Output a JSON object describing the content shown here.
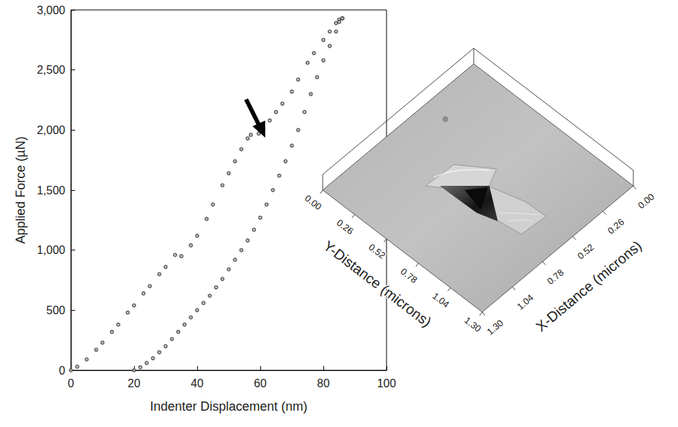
{
  "chart_data": {
    "type": "scatter",
    "xlabel": "Indenter Displacement (nm)",
    "ylabel": "Applied Force (µN)",
    "xlim": [
      0,
      100
    ],
    "xticks": [
      0,
      20,
      40,
      60,
      80,
      100
    ],
    "ylim": [
      0,
      3000
    ],
    "yticks": [
      0,
      500,
      1000,
      1500,
      2000,
      2500,
      3000
    ],
    "grid": false,
    "marker": "circle-open",
    "series": [
      {
        "color": "#4a4a4a",
        "x": [
          0,
          2,
          5,
          8,
          10,
          13,
          15,
          18,
          20,
          23,
          25,
          28,
          30,
          33,
          35,
          38,
          40,
          43,
          45,
          48,
          50,
          52,
          54,
          56,
          57,
          59.5,
          61,
          63,
          65,
          67,
          70,
          72,
          75,
          77,
          80,
          82,
          84,
          85,
          86
        ],
        "values": [
          0,
          30,
          90,
          170,
          230,
          320,
          380,
          480,
          540,
          640,
          700,
          800,
          860,
          960,
          950,
          1040,
          1120,
          1260,
          1380,
          1540,
          1640,
          1740,
          1840,
          1930,
          1960,
          1970,
          2010,
          2080,
          2150,
          2220,
          2320,
          2420,
          2560,
          2640,
          2750,
          2820,
          2890,
          2920,
          2930
        ]
      },
      {
        "color": "#4a4a4a",
        "x": [
          86,
          85,
          84,
          82,
          80,
          78,
          76,
          74,
          72,
          70,
          68,
          66,
          64,
          62,
          60,
          58,
          56,
          54,
          52,
          50,
          48,
          46,
          44,
          42,
          40,
          38,
          36,
          34,
          32,
          30,
          28,
          26,
          24,
          22,
          20
        ],
        "values": [
          2930,
          2900,
          2820,
          2700,
          2580,
          2440,
          2300,
          2150,
          2000,
          1870,
          1740,
          1620,
          1500,
          1380,
          1270,
          1170,
          1080,
          1000,
          920,
          840,
          760,
          690,
          620,
          560,
          500,
          440,
          380,
          320,
          260,
          200,
          150,
          100,
          60,
          25,
          0
        ]
      }
    ],
    "inset": {
      "type": "surface",
      "xlabel": "X-Distance (microns)",
      "ylabel": "Y-Distance (microns)",
      "xlim": [
        0,
        1.3
      ],
      "xticks": [
        {
          "value": 0,
          "label": "0.00"
        },
        {
          "value": 0.26,
          "label": "0.26"
        },
        {
          "value": 0.52,
          "label": "0.52"
        },
        {
          "value": 0.78,
          "label": "0.78"
        },
        {
          "value": 1.04,
          "label": "1.04"
        },
        {
          "value": 1.3,
          "label": "1.30"
        }
      ],
      "ylim": [
        0,
        1.3
      ],
      "yticks": [
        {
          "value": 0,
          "label": "0.00"
        },
        {
          "value": 0.26,
          "label": "0.26"
        },
        {
          "value": 0.52,
          "label": "0.52"
        },
        {
          "value": 0.78,
          "label": "0.78"
        },
        {
          "value": 1.04,
          "label": "1.04"
        },
        {
          "value": 1.3,
          "label": "1.30"
        }
      ]
    }
  }
}
